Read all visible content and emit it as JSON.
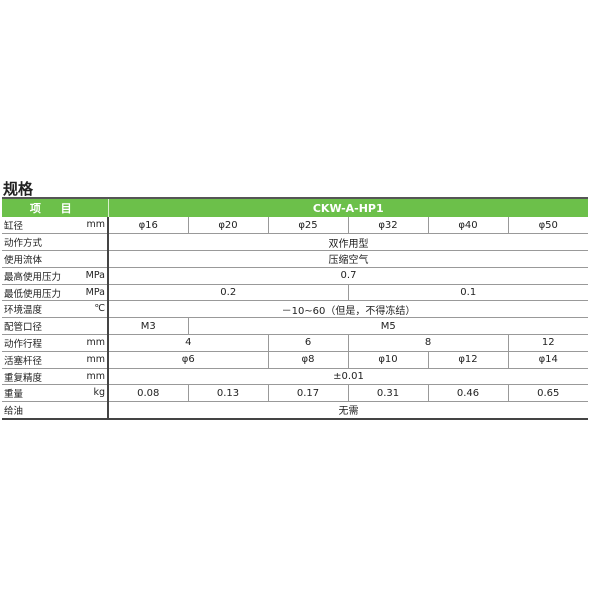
{
  "title": "规格",
  "header": {
    "item": "项 目",
    "model": "CKW-A-HP1"
  },
  "rows": [
    {
      "label": "缸径",
      "unit": "mm",
      "cells": [
        {
          "v": "φ16",
          "span": 1
        },
        {
          "v": "φ20",
          "span": 1
        },
        {
          "v": "φ25",
          "span": 1
        },
        {
          "v": "φ32",
          "span": 1
        },
        {
          "v": "φ40",
          "span": 1
        },
        {
          "v": "φ50",
          "span": 1
        }
      ]
    },
    {
      "label": "动作方式",
      "unit": "",
      "cells": [
        {
          "v": "双作用型",
          "span": 6
        }
      ]
    },
    {
      "label": "使用流体",
      "unit": "",
      "cells": [
        {
          "v": "压缩空气",
          "span": 6
        }
      ]
    },
    {
      "label": "最高使用压力",
      "unit": "MPa",
      "cells": [
        {
          "v": "0.7",
          "span": 6
        }
      ]
    },
    {
      "label": "最低使用压力",
      "unit": "MPa",
      "cells": [
        {
          "v": "0.2",
          "span": 3
        },
        {
          "v": "0.1",
          "span": 3
        }
      ]
    },
    {
      "label": "环境温度",
      "unit": "℃",
      "cells": [
        {
          "v": "－10~60（但是，不得冻结）",
          "span": 6
        }
      ]
    },
    {
      "label": "配管口径",
      "unit": "",
      "cells": [
        {
          "v": "M3",
          "span": 1
        },
        {
          "v": "M5",
          "span": 5
        }
      ]
    },
    {
      "label": "动作行程",
      "unit": "mm",
      "cells": [
        {
          "v": "4",
          "span": 2
        },
        {
          "v": "6",
          "span": 1
        },
        {
          "v": "8",
          "span": 2
        },
        {
          "v": "12",
          "span": 1
        }
      ]
    },
    {
      "label": "活塞杆径",
      "unit": "mm",
      "cells": [
        {
          "v": "φ6",
          "span": 2
        },
        {
          "v": "φ8",
          "span": 1
        },
        {
          "v": "φ10",
          "span": 1
        },
        {
          "v": "φ12",
          "span": 1
        },
        {
          "v": "φ14",
          "span": 1
        }
      ]
    },
    {
      "label": "重复精度",
      "unit": "mm",
      "cells": [
        {
          "v": "±0.01",
          "span": 6
        }
      ]
    },
    {
      "label": "重量",
      "unit": "kg",
      "cells": [
        {
          "v": "0.08",
          "span": 1
        },
        {
          "v": "0.13",
          "span": 1
        },
        {
          "v": "0.17",
          "span": 1
        },
        {
          "v": "0.31",
          "span": 1
        },
        {
          "v": "0.46",
          "span": 1
        },
        {
          "v": "0.65",
          "span": 1
        }
      ]
    },
    {
      "label": "给油",
      "unit": "",
      "cells": [
        {
          "v": "无需",
          "span": 6
        }
      ]
    }
  ]
}
